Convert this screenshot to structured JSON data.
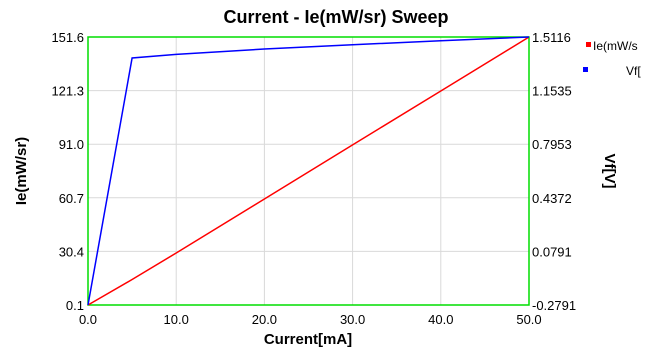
{
  "chart_data": {
    "type": "line",
    "title": "Current - Ie(mW/sr) Sweep",
    "xlabel": "Current[mA]",
    "ylabel_left": "Ie(mW/sr)",
    "ylabel_right": "Vf[V]",
    "xlim": [
      0,
      50
    ],
    "ylim_left": [
      0.1,
      151.6
    ],
    "ylim_right": [
      -0.2791,
      1.5116
    ],
    "x_ticks": [
      "0.0",
      "10.0",
      "20.0",
      "30.0",
      "40.0",
      "50.0"
    ],
    "x_tick_values": [
      0,
      10,
      20,
      30,
      40,
      50
    ],
    "y_left_ticks": [
      "0.1",
      "30.4",
      "60.7",
      "91.0",
      "121.3",
      "151.6"
    ],
    "y_right_ticks": [
      "-0.2791",
      "0.0791",
      "0.4372",
      "0.7953",
      "1.1535",
      "1.5116"
    ],
    "grid": true,
    "legend_position": "right",
    "series": [
      {
        "name": "Ie(mW/s",
        "axis": "left",
        "color": "#ff0000",
        "x": [
          0,
          5,
          10,
          20,
          30,
          40,
          50
        ],
        "y": [
          0.1,
          14.5,
          29.5,
          60.0,
          90.6,
          121.1,
          151.6
        ]
      },
      {
        "name": "Vf[",
        "axis": "right",
        "color": "#0000ff",
        "x": [
          0,
          5,
          10,
          20,
          30,
          40,
          50
        ],
        "y": [
          -0.2791,
          1.3712,
          1.3956,
          1.4313,
          1.4594,
          1.4866,
          1.5116
        ]
      }
    ],
    "colors": {
      "frame": "#00dd00",
      "grid": "#d9d9d9"
    }
  }
}
